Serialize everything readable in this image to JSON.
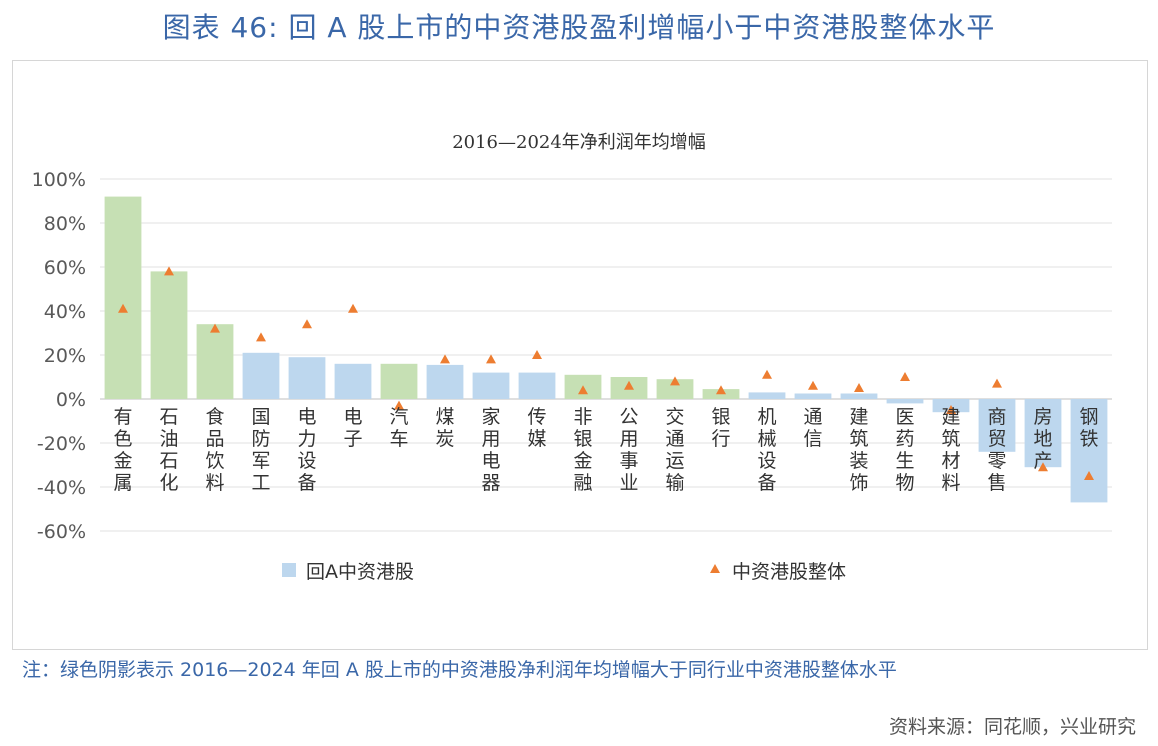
{
  "page": {
    "title": "图表 46: 回 A 股上市的中资港股盈利增幅小于中资港股整体水平",
    "note": "注：绿色阴影表示 2016—2024 年回 A 股上市的中资港股净利润年均增幅大于同行业中资港股整体水平",
    "source": "资料来源：同花顺，兴业研究"
  },
  "colors": {
    "green_bar": "#c6e0b4",
    "blue_bar": "#bdd7ee",
    "marker": "#ed7d31",
    "grid": "#e2e2e2",
    "title": "#3a67a8"
  },
  "chart_data": {
    "type": "bar",
    "title": "2016—2024年净利润年均增幅",
    "ylim": [
      -60,
      100
    ],
    "yticks": [
      100,
      80,
      60,
      40,
      20,
      0,
      -20,
      -40,
      -60
    ],
    "ytick_labels": [
      "100%",
      "80%",
      "60%",
      "40%",
      "20%",
      "0%",
      "-20%",
      "-40%",
      "-60%"
    ],
    "grid": true,
    "legend_position": "bottom",
    "categories": [
      "有色金属",
      "石油石化",
      "食品饮料",
      "国防军工",
      "电力设备",
      "电子",
      "汽车",
      "煤炭",
      "家用电器",
      "传媒",
      "非银金融",
      "公用事业",
      "交通运输",
      "银行",
      "机械设备",
      "通信",
      "建筑装饰",
      "医药生物",
      "建筑材料",
      "商贸零售",
      "房地产",
      "钢铁"
    ],
    "series": [
      {
        "name": "回A中资港股",
        "kind": "bar",
        "values": [
          92,
          58,
          34,
          21,
          19,
          16,
          16,
          15.5,
          12,
          12,
          11,
          10,
          9,
          4.5,
          3,
          2.5,
          2.5,
          -2,
          -6,
          -24,
          -31,
          -47
        ],
        "highlight": [
          true,
          true,
          true,
          false,
          false,
          false,
          true,
          false,
          false,
          false,
          true,
          true,
          true,
          true,
          false,
          false,
          false,
          false,
          false,
          false,
          false,
          false
        ]
      },
      {
        "name": "中资港股整体",
        "kind": "marker",
        "values": [
          41,
          58,
          32,
          28,
          34,
          41,
          -3,
          18,
          18,
          20,
          4,
          6,
          8,
          4,
          11,
          6,
          5,
          10,
          -5,
          7,
          -31,
          -35
        ]
      }
    ]
  }
}
